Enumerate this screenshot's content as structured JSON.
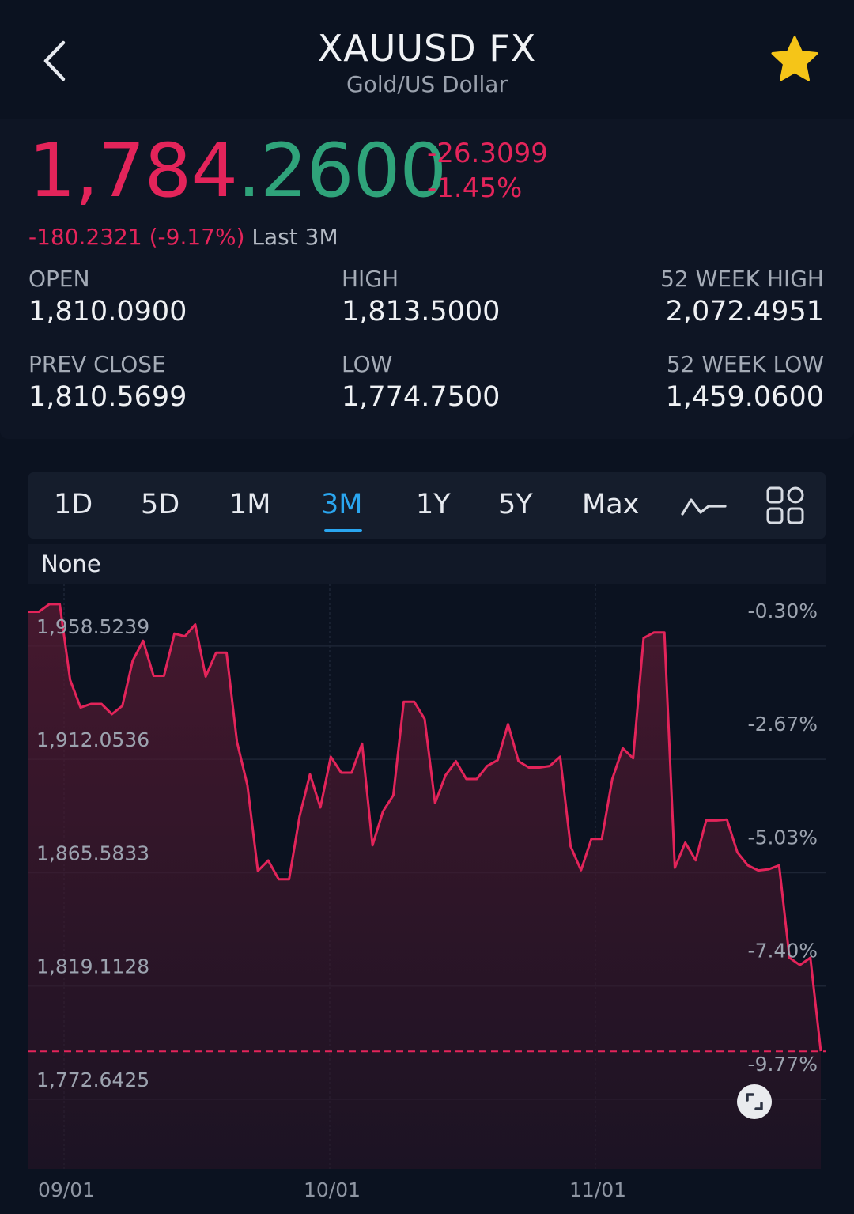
{
  "header": {
    "title": "XAUUSD FX",
    "subtitle": "Gold/US Dollar",
    "back_icon": "chevron-left-icon",
    "favorite_icon": "star-icon",
    "favorite_color": "#f5c518"
  },
  "quote": {
    "price_red_part": "1,784",
    "price_green_part": ".2600",
    "change": "-26.3099",
    "change_pct": "-1.45%",
    "range_change": "-180.2321 (-9.17%)",
    "range_label": "Last 3M",
    "stats": {
      "open_label": "OPEN",
      "open_value": "1,810.0900",
      "high_label": "HIGH",
      "high_value": "1,813.5000",
      "w52_high_label": "52 WEEK HIGH",
      "w52_high_value": "2,072.4951",
      "prev_close_label": "PREV CLOSE",
      "prev_close_value": "1,810.5699",
      "low_label": "LOW",
      "low_value": "1,774.7500",
      "w52_low_label": "52 WEEK LOW",
      "w52_low_value": "1,459.0600"
    },
    "colors": {
      "down": "#e3245a",
      "up": "#2fa37a"
    }
  },
  "tabs": {
    "items": [
      "1D",
      "5D",
      "1M",
      "3M",
      "1Y",
      "5Y",
      "Max"
    ],
    "active": "3M",
    "active_color": "#2aa6f0",
    "chart_type_icon": "line-chart-icon",
    "layout_icon": "grid-icon"
  },
  "indicator": {
    "label": "None"
  },
  "chart_data": {
    "type": "area",
    "y_left_ticks": [
      "1,958.5239",
      "1,912.0536",
      "1,865.5833",
      "1,819.1128",
      "1,772.6425"
    ],
    "y_left_values": [
      1958.5239,
      1912.0536,
      1865.5833,
      1819.1128,
      1772.6425
    ],
    "y_right_ticks": [
      "-0.30%",
      "-2.67%",
      "-5.03%",
      "-7.40%",
      "-9.77%"
    ],
    "x_ticks": [
      "09/01",
      "10/01",
      "11/01"
    ],
    "ylim": [
      1736,
      1976
    ],
    "line_color": "#e3245a",
    "grid": true,
    "reference_line": 1784.26,
    "series": [
      {
        "values": [
          1964.5,
          1964.5,
          1967.6,
          1967.6,
          1936.5,
          1925.2,
          1926.7,
          1926.7,
          1922.5,
          1925.9,
          1944.4,
          1952.6,
          1938.2,
          1938.2,
          1955.5,
          1954.4,
          1959.3,
          1937.9,
          1947.7,
          1947.7,
          1911.1,
          1893.3,
          1858.2,
          1862.5,
          1854.8,
          1854.8,
          1880.5,
          1897.8,
          1884.2,
          1905.0,
          1898.5,
          1898.5,
          1910.4,
          1868.7,
          1882.6,
          1889.2,
          1927.6,
          1927.6,
          1920.5,
          1886.0,
          1897.4,
          1903.2,
          1895.9,
          1895.9,
          1901.2,
          1903.6,
          1918.4,
          1903.2,
          1900.6,
          1900.6,
          1901.2,
          1905.0,
          1868.3,
          1858.5,
          1871.3,
          1871.3,
          1895.9,
          1908.5,
          1904.4,
          1953.7,
          1956.0,
          1956.0,
          1859.5,
          1869.8,
          1862.6,
          1878.9,
          1878.9,
          1879.3,
          1865.8,
          1860.5,
          1858.4,
          1858.9,
          1860.5,
          1822.6,
          1819.6,
          1822.6,
          1784.3
        ]
      }
    ]
  },
  "expand_icon": "expand-icon"
}
